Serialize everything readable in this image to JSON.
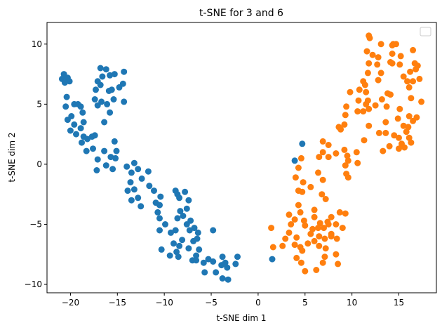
{
  "chart_data": {
    "type": "scatter",
    "title": "t-SNE for 3 and 6",
    "xlabel": "t-SNE dim 1",
    "ylabel": "t-SNE dim 2",
    "xlim": [
      -22.5,
      19
    ],
    "ylim": [
      -10.7,
      11.8
    ],
    "xticks": [
      -20,
      -15,
      -10,
      -5,
      0,
      5,
      10,
      15
    ],
    "yticks": [
      -10,
      -5,
      0,
      5,
      10
    ],
    "legend": "top-right, empty",
    "grid": false,
    "series": [
      {
        "color": "#1f77b4",
        "points": [
          [
            -20.9,
            7.1
          ],
          [
            -20.7,
            7.5
          ],
          [
            -20.3,
            7.2
          ],
          [
            -20.1,
            6.9
          ],
          [
            -20.6,
            6.8
          ],
          [
            -20.4,
            5.6
          ],
          [
            -20.5,
            4.8
          ],
          [
            -19.9,
            4.0
          ],
          [
            -19.6,
            5.0
          ],
          [
            -19.2,
            5.0
          ],
          [
            -18.9,
            4.8
          ],
          [
            -20.3,
            3.7
          ],
          [
            -19.6,
            3.3
          ],
          [
            -20.0,
            2.8
          ],
          [
            -19.4,
            2.5
          ],
          [
            -18.7,
            4.3
          ],
          [
            -18.6,
            3.5
          ],
          [
            -18.9,
            3.0
          ],
          [
            -18.6,
            2.3
          ],
          [
            -18.2,
            2.1
          ],
          [
            -18.8,
            1.8
          ],
          [
            -18.3,
            1.1
          ],
          [
            -17.7,
            2.3
          ],
          [
            -17.4,
            2.4
          ],
          [
            -17.6,
            1.3
          ],
          [
            -17.1,
            0.4
          ],
          [
            -17.2,
            -0.5
          ],
          [
            -16.4,
            1.1
          ],
          [
            -16.2,
            -0.1
          ],
          [
            -15.7,
            0.6
          ],
          [
            -15.5,
            -0.4
          ],
          [
            -15.1,
            1.1
          ],
          [
            -15.3,
            1.9
          ],
          [
            -15.2,
            0.5
          ],
          [
            -17.1,
            6.9
          ],
          [
            -16.6,
            7.3
          ],
          [
            -16.8,
            8.0
          ],
          [
            -16.2,
            7.9
          ],
          [
            -15.8,
            7.4
          ],
          [
            -15.3,
            7.5
          ],
          [
            -14.3,
            7.7
          ],
          [
            -14.4,
            6.7
          ],
          [
            -14.8,
            6.4
          ],
          [
            -15.6,
            6.2
          ],
          [
            -15.9,
            6.1
          ],
          [
            -16.8,
            6.6
          ],
          [
            -17.3,
            6.2
          ],
          [
            -17.4,
            5.4
          ],
          [
            -17.1,
            4.9
          ],
          [
            -16.7,
            5.2
          ],
          [
            -16.1,
            5.0
          ],
          [
            -15.4,
            5.4
          ],
          [
            -14.3,
            5.2
          ],
          [
            -15.8,
            4.3
          ],
          [
            -16.4,
            3.5
          ],
          [
            -14.0,
            -0.2
          ],
          [
            -13.5,
            -0.7
          ],
          [
            -13.2,
            0.1
          ],
          [
            -12.8,
            -0.4
          ],
          [
            -12.4,
            -1.2
          ],
          [
            -13.6,
            -1.5
          ],
          [
            -13.9,
            -2.2
          ],
          [
            -13.2,
            -2.1
          ],
          [
            -12.8,
            -2.8
          ],
          [
            -13.5,
            -3.0
          ],
          [
            -12.5,
            -3.5
          ],
          [
            -11.7,
            -0.6
          ],
          [
            -11.6,
            -1.8
          ],
          [
            -11.1,
            -2.2
          ],
          [
            -10.4,
            -2.7
          ],
          [
            -10.9,
            -3.2
          ],
          [
            -10.5,
            -3.4
          ],
          [
            -10.7,
            -4.0
          ],
          [
            -10.5,
            -4.5
          ],
          [
            -9.9,
            -5.0
          ],
          [
            -8.8,
            -2.2
          ],
          [
            -8.6,
            -2.5
          ],
          [
            -8.4,
            -2.8
          ],
          [
            -7.8,
            -2.3
          ],
          [
            -7.4,
            -3.0
          ],
          [
            -7.6,
            -3.7
          ],
          [
            -8.3,
            -3.9
          ],
          [
            -8.6,
            -4.5
          ],
          [
            -8.0,
            -4.3
          ],
          [
            -7.6,
            -5.0
          ],
          [
            -7.3,
            -5.5
          ],
          [
            -6.8,
            -5.3
          ],
          [
            -7.2,
            -4.7
          ],
          [
            -10.5,
            -5.5
          ],
          [
            -10.3,
            -7.1
          ],
          [
            -9.3,
            -5.7
          ],
          [
            -8.8,
            -5.5
          ],
          [
            -9.0,
            -6.6
          ],
          [
            -8.4,
            -6.8
          ],
          [
            -8.1,
            -6.3
          ],
          [
            -8.7,
            -7.3
          ],
          [
            -9.4,
            -7.6
          ],
          [
            -8.5,
            -7.7
          ],
          [
            -7.4,
            -7.0
          ],
          [
            -6.9,
            -6.4
          ],
          [
            -6.5,
            -6.2
          ],
          [
            -6.3,
            -7.1
          ],
          [
            -6.6,
            -7.6
          ],
          [
            -7.0,
            -8.0
          ],
          [
            -6.6,
            -8.0
          ],
          [
            -5.8,
            -8.2
          ],
          [
            -6.4,
            -5.7
          ],
          [
            -4.8,
            -5.5
          ],
          [
            -5.7,
            -9.0
          ],
          [
            -5.3,
            -7.9
          ],
          [
            -4.8,
            -8.1
          ],
          [
            -4.5,
            -9.0
          ],
          [
            -3.8,
            -7.7
          ],
          [
            -3.9,
            -8.4
          ],
          [
            -3.5,
            -8.2
          ],
          [
            -3.8,
            -9.5
          ],
          [
            -3.2,
            -9.6
          ],
          [
            -3.3,
            -8.6
          ],
          [
            -2.4,
            -8.3
          ],
          [
            -2.2,
            -7.7
          ],
          [
            1.5,
            -7.9
          ],
          [
            4.7,
            1.7
          ],
          [
            3.9,
            0.3
          ]
        ]
      },
      {
        "color": "#ff7f0e",
        "points": [
          [
            11.8,
            10.7
          ],
          [
            11.9,
            10.5
          ],
          [
            13.1,
            10.0
          ],
          [
            14.4,
            10.0
          ],
          [
            14.7,
            10.0
          ],
          [
            14.3,
            9.9
          ],
          [
            11.6,
            9.4
          ],
          [
            12.2,
            9.1
          ],
          [
            14.3,
            9.2
          ],
          [
            12.8,
            8.9
          ],
          [
            15.2,
            9.0
          ],
          [
            16.5,
            9.5
          ],
          [
            11.8,
            8.4
          ],
          [
            12.7,
            8.3
          ],
          [
            14.1,
            8.5
          ],
          [
            14.3,
            8.4
          ],
          [
            15.1,
            8.3
          ],
          [
            16.7,
            8.4
          ],
          [
            17.0,
            8.2
          ],
          [
            11.7,
            7.6
          ],
          [
            13.1,
            7.6
          ],
          [
            15.5,
            7.3
          ],
          [
            16.2,
            7.7
          ],
          [
            16.8,
            7.9
          ],
          [
            11.2,
            6.9
          ],
          [
            11.4,
            6.6
          ],
          [
            12.8,
            7.0
          ],
          [
            15.9,
            6.9
          ],
          [
            16.5,
            6.9
          ],
          [
            17.2,
            7.1
          ],
          [
            16.1,
            6.4
          ],
          [
            9.8,
            6.0
          ],
          [
            10.8,
            6.2
          ],
          [
            11.5,
            6.0
          ],
          [
            13.8,
            5.9
          ],
          [
            14.1,
            5.8
          ],
          [
            16.3,
            5.5
          ],
          [
            17.4,
            5.2
          ],
          [
            10.7,
            5.3
          ],
          [
            11.5,
            5.0
          ],
          [
            11.7,
            5.3
          ],
          [
            13.2,
            5.4
          ],
          [
            12.5,
            4.9
          ],
          [
            13.7,
            4.8
          ],
          [
            15.1,
            4.6
          ],
          [
            16.1,
            4.0
          ],
          [
            9.4,
            4.8
          ],
          [
            10.6,
            4.4
          ],
          [
            11.2,
            4.4
          ],
          [
            11.8,
            4.6
          ],
          [
            9.3,
            4.1
          ],
          [
            14.9,
            3.8
          ],
          [
            16.5,
            3.6
          ],
          [
            16.9,
            3.9
          ],
          [
            13.6,
            3.5
          ],
          [
            15.5,
            3.2
          ],
          [
            16.0,
            3.1
          ],
          [
            11.8,
            3.2
          ],
          [
            9.2,
            3.3
          ],
          [
            8.6,
            3.1
          ],
          [
            8.8,
            2.9
          ],
          [
            15.8,
            2.7
          ],
          [
            16.1,
            2.2
          ],
          [
            14.5,
            2.4
          ],
          [
            15.0,
            2.2
          ],
          [
            12.9,
            2.6
          ],
          [
            13.6,
            2.6
          ],
          [
            11.3,
            2.0
          ],
          [
            15.3,
            1.7
          ],
          [
            16.3,
            1.8
          ],
          [
            14.0,
            1.5
          ],
          [
            15.0,
            1.3
          ],
          [
            15.6,
            1.4
          ],
          [
            13.3,
            1.1
          ],
          [
            10.5,
            1.0
          ],
          [
            9.2,
            1.2
          ],
          [
            6.9,
            1.9
          ],
          [
            7.5,
            1.6
          ],
          [
            9.5,
            0.7
          ],
          [
            8.3,
            0.9
          ],
          [
            6.9,
            1.0
          ],
          [
            10.6,
            0.1
          ],
          [
            9.6,
            0.3
          ],
          [
            9.3,
            -0.1
          ],
          [
            7.5,
            0.6
          ],
          [
            6.5,
            0.6
          ],
          [
            9.4,
            -0.8
          ],
          [
            9.6,
            -1.1
          ],
          [
            6.4,
            -0.7
          ],
          [
            6.9,
            -1.3
          ],
          [
            4.6,
            0.5
          ],
          [
            4.3,
            -0.3
          ],
          [
            4.8,
            -1.5
          ],
          [
            4.0,
            -1.1
          ],
          [
            4.3,
            -2.2
          ],
          [
            4.7,
            -2.3
          ],
          [
            5.6,
            -1.9
          ],
          [
            4.3,
            -3.4
          ],
          [
            6.8,
            -2.5
          ],
          [
            4.5,
            -4.0
          ],
          [
            3.3,
            -4.2
          ],
          [
            6.0,
            -3.8
          ],
          [
            7.2,
            -2.9
          ],
          [
            6.0,
            -4.4
          ],
          [
            3.9,
            -4.6
          ],
          [
            3.5,
            -5.0
          ],
          [
            6.6,
            -4.9
          ],
          [
            7.4,
            -4.8
          ],
          [
            7.8,
            -4.4
          ],
          [
            8.7,
            -4.0
          ],
          [
            4.9,
            -4.7
          ],
          [
            5.0,
            -5.1
          ],
          [
            5.8,
            -5.4
          ],
          [
            6.4,
            -5.3
          ],
          [
            7.0,
            -5.3
          ],
          [
            7.5,
            -5.0
          ],
          [
            8.3,
            -5.0
          ],
          [
            9.0,
            -5.3
          ],
          [
            9.3,
            -4.1
          ],
          [
            7.8,
            -5.8
          ],
          [
            1.4,
            -5.3
          ],
          [
            3.3,
            -5.7
          ],
          [
            5.6,
            -5.8
          ],
          [
            6.5,
            -6.0
          ],
          [
            6.0,
            -6.4
          ],
          [
            7.1,
            -6.2
          ],
          [
            7.8,
            -6.0
          ],
          [
            8.4,
            -6.2
          ],
          [
            2.9,
            -6.2
          ],
          [
            4.1,
            -6.1
          ],
          [
            3.9,
            -6.7
          ],
          [
            4.5,
            -6.9
          ],
          [
            5.3,
            -6.6
          ],
          [
            4.7,
            -7.2
          ],
          [
            6.5,
            -6.8
          ],
          [
            7.2,
            -7.0
          ],
          [
            7.1,
            -7.7
          ],
          [
            8.3,
            -7.5
          ],
          [
            8.5,
            -8.3
          ],
          [
            4.6,
            -8.2
          ],
          [
            6.2,
            -8.8
          ],
          [
            5.0,
            -8.9
          ],
          [
            2.6,
            -6.8
          ],
          [
            1.6,
            -6.9
          ],
          [
            6.9,
            -8.2
          ],
          [
            4.1,
            -7.8
          ]
        ]
      }
    ]
  }
}
